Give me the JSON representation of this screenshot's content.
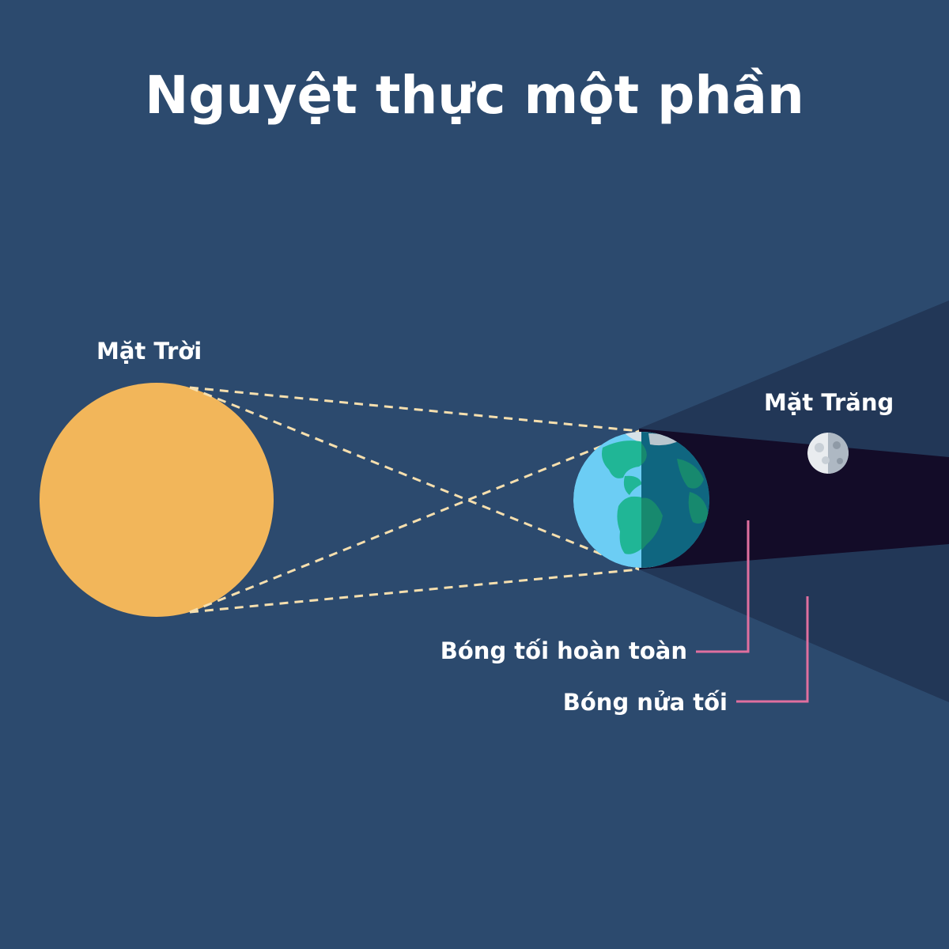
{
  "title": "Nguyệt thực một phần",
  "labels": {
    "sun": "Mặt Trời",
    "moon": "Mặt Trăng",
    "umbra": "Bóng tối hoàn toàn",
    "penumbra": "Bóng nửa tối"
  },
  "colors": {
    "background": "#2c4a6e",
    "sun": "#f2b65a",
    "sun_rays": "#f6dfae",
    "umbra": "#130c28",
    "penumbra": "#223757",
    "earth_ocean_lit": "#6ccdf4",
    "earth_land_lit": "#20b696",
    "earth_ocean_dark": "#0f6680",
    "earth_land_dark": "#17896e",
    "earth_ice": "#d7e2e8",
    "moon_lit": "#e9ecef",
    "moon_dark": "#aeb8c3",
    "pointer": "#e06f9f"
  }
}
